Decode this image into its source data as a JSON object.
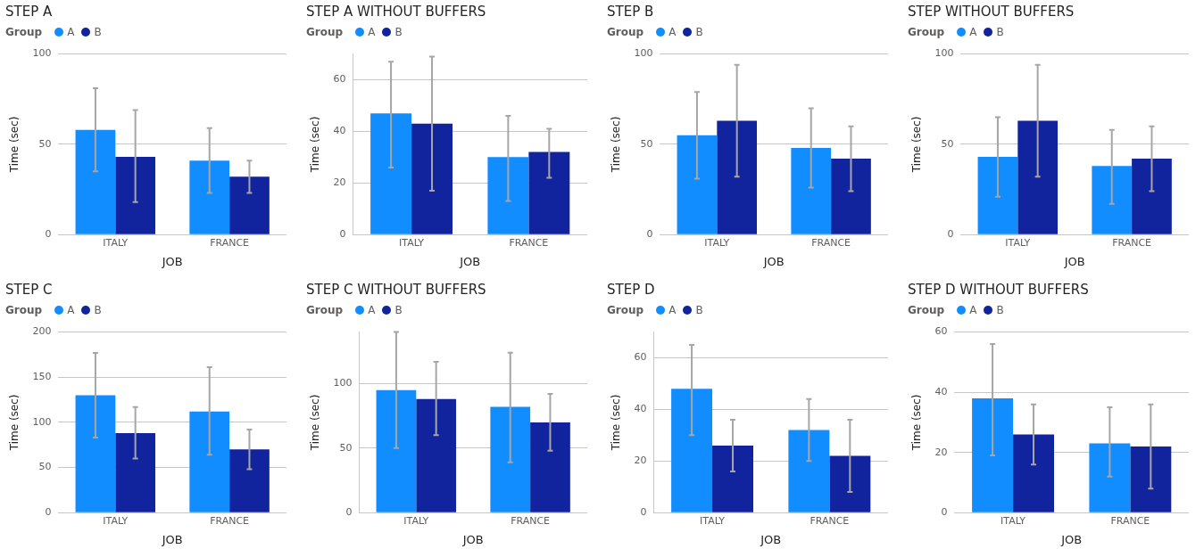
{
  "chart_data": [
    {
      "type": "bar",
      "title": "STEP A",
      "xlabel": "JOB",
      "ylabel": "Time (sec)",
      "legend_title": "Group",
      "legend": "top left",
      "grid": "y",
      "categories": [
        "ITALY",
        "FRANCE"
      ],
      "ylim": [
        0,
        100
      ],
      "yticks": [
        0,
        50,
        100
      ],
      "series": [
        {
          "name": "A",
          "color": "#118dff",
          "values": [
            58,
            41
          ],
          "errors": [
            [
              35,
              81
            ],
            [
              23,
              59
            ]
          ]
        },
        {
          "name": "B",
          "color": "#12239e",
          "values": [
            43,
            32
          ],
          "errors": [
            [
              18,
              69
            ],
            [
              23,
              41
            ]
          ]
        }
      ]
    },
    {
      "type": "bar",
      "title": "STEP A WITHOUT BUFFERS",
      "xlabel": "JOB",
      "ylabel": "Time (sec)",
      "legend_title": "Group",
      "legend": "top left",
      "grid": "y",
      "categories": [
        "ITALY",
        "FRANCE"
      ],
      "ylim": [
        0,
        70
      ],
      "yticks": [
        0,
        20,
        40,
        60
      ],
      "series": [
        {
          "name": "A",
          "color": "#118dff",
          "values": [
            47,
            30
          ],
          "errors": [
            [
              26,
              67
            ],
            [
              13,
              46
            ]
          ]
        },
        {
          "name": "B",
          "color": "#12239e",
          "values": [
            43,
            32
          ],
          "errors": [
            [
              17,
              69
            ],
            [
              22,
              41
            ]
          ]
        }
      ]
    },
    {
      "type": "bar",
      "title": "STEP B",
      "xlabel": "JOB",
      "ylabel": "Time (sec)",
      "legend_title": "Group",
      "legend": "top left",
      "grid": "y",
      "categories": [
        "ITALY",
        "FRANCE"
      ],
      "ylim": [
        0,
        100
      ],
      "yticks": [
        0,
        50,
        100
      ],
      "series": [
        {
          "name": "A",
          "color": "#118dff",
          "values": [
            55,
            48
          ],
          "errors": [
            [
              31,
              79
            ],
            [
              26,
              70
            ]
          ]
        },
        {
          "name": "B",
          "color": "#12239e",
          "values": [
            63,
            42
          ],
          "errors": [
            [
              32,
              94
            ],
            [
              24,
              60
            ]
          ]
        }
      ]
    },
    {
      "type": "bar",
      "title": "STEP WITHOUT BUFFERS",
      "xlabel": "JOB",
      "ylabel": "Time (sec)",
      "legend_title": "Group",
      "legend": "top left",
      "grid": "y",
      "categories": [
        "ITALY",
        "FRANCE"
      ],
      "ylim": [
        0,
        100
      ],
      "yticks": [
        0,
        50,
        100
      ],
      "series": [
        {
          "name": "A",
          "color": "#118dff",
          "values": [
            43,
            38
          ],
          "errors": [
            [
              21,
              65
            ],
            [
              17,
              58
            ]
          ]
        },
        {
          "name": "B",
          "color": "#12239e",
          "values": [
            63,
            42
          ],
          "errors": [
            [
              32,
              94
            ],
            [
              24,
              60
            ]
          ]
        }
      ]
    },
    {
      "type": "bar",
      "title": "STEP C",
      "xlabel": "JOB",
      "ylabel": "Time (sec)",
      "legend_title": "Group",
      "legend": "top left",
      "grid": "y",
      "categories": [
        "ITALY",
        "FRANCE"
      ],
      "ylim": [
        0,
        200
      ],
      "yticks": [
        0,
        50,
        100,
        150,
        200
      ],
      "series": [
        {
          "name": "A",
          "color": "#118dff",
          "values": [
            130,
            112
          ],
          "errors": [
            [
              83,
              177
            ],
            [
              64,
              161
            ]
          ]
        },
        {
          "name": "B",
          "color": "#12239e",
          "values": [
            88,
            70
          ],
          "errors": [
            [
              60,
              117
            ],
            [
              48,
              92
            ]
          ]
        }
      ]
    },
    {
      "type": "bar",
      "title": "STEP C WITHOUT BUFFERS",
      "xlabel": "JOB",
      "ylabel": "Time (sec)",
      "legend_title": "Group",
      "legend": "top left",
      "grid": "y",
      "categories": [
        "ITALY",
        "FRANCE"
      ],
      "ylim": [
        0,
        140
      ],
      "yticks": [
        0,
        50,
        100
      ],
      "series": [
        {
          "name": "A",
          "color": "#118dff",
          "values": [
            95,
            82
          ],
          "errors": [
            [
              50,
              140
            ],
            [
              39,
              124
            ]
          ]
        },
        {
          "name": "B",
          "color": "#12239e",
          "values": [
            88,
            70
          ],
          "errors": [
            [
              60,
              117
            ],
            [
              48,
              92
            ]
          ]
        }
      ]
    },
    {
      "type": "bar",
      "title": "STEP D",
      "xlabel": "JOB",
      "ylabel": "Time (sec)",
      "legend_title": "Group",
      "legend": "top left",
      "grid": "y",
      "categories": [
        "ITALY",
        "FRANCE"
      ],
      "ylim": [
        0,
        70
      ],
      "yticks": [
        0,
        20,
        40,
        60
      ],
      "series": [
        {
          "name": "A",
          "color": "#118dff",
          "values": [
            48,
            32
          ],
          "errors": [
            [
              30,
              65
            ],
            [
              20,
              44
            ]
          ]
        },
        {
          "name": "B",
          "color": "#12239e",
          "values": [
            26,
            22
          ],
          "errors": [
            [
              16,
              36
            ],
            [
              8,
              36
            ]
          ]
        }
      ]
    },
    {
      "type": "bar",
      "title": "STEP D WITHOUT BUFFERS",
      "xlabel": "JOB",
      "ylabel": "Time (sec)",
      "legend_title": "Group",
      "legend": "top left",
      "grid": "y",
      "categories": [
        "ITALY",
        "FRANCE"
      ],
      "ylim": [
        0,
        60
      ],
      "yticks": [
        0,
        20,
        40,
        60
      ],
      "series": [
        {
          "name": "A",
          "color": "#118dff",
          "values": [
            38,
            23
          ],
          "errors": [
            [
              19,
              56
            ],
            [
              12,
              35
            ]
          ]
        },
        {
          "name": "B",
          "color": "#12239e",
          "values": [
            26,
            22
          ],
          "errors": [
            [
              16,
              36
            ],
            [
              8,
              36
            ]
          ]
        }
      ]
    }
  ]
}
